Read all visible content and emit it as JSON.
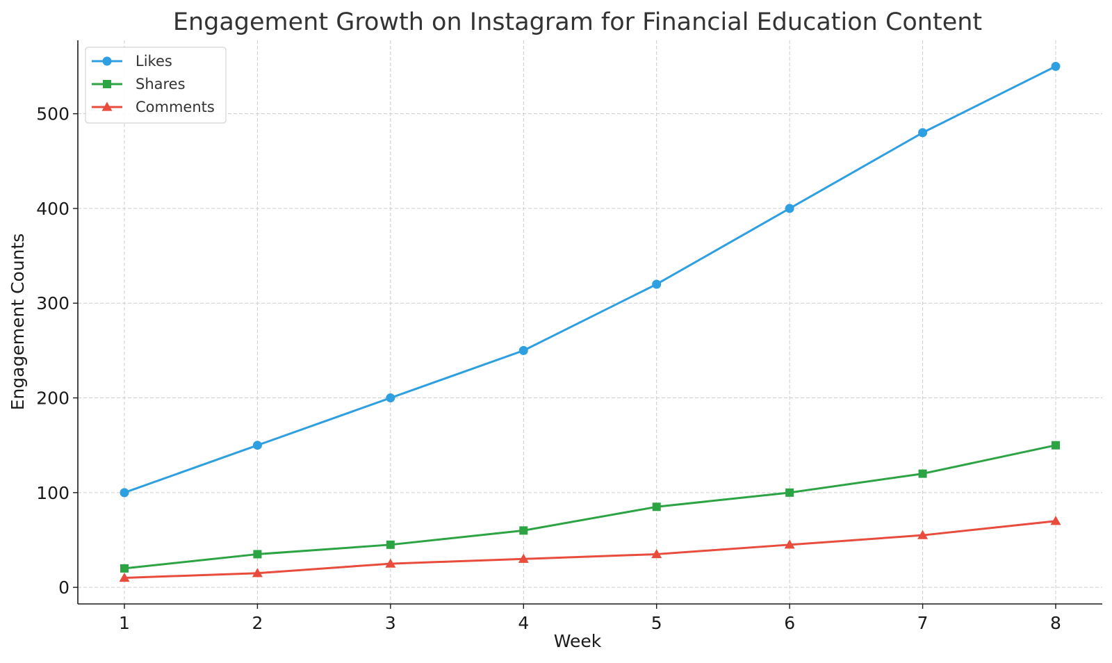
{
  "chart_data": {
    "type": "line",
    "title": "Engagement Growth on Instagram for Financial Education Content",
    "xlabel": "Week",
    "ylabel": "Engagement Counts",
    "x": [
      1,
      2,
      3,
      4,
      5,
      6,
      7,
      8
    ],
    "x_tick_labels": [
      "1",
      "2",
      "3",
      "4",
      "5",
      "6",
      "7",
      "8"
    ],
    "xlim": [
      0.65,
      8.35
    ],
    "ylim": [
      -17.5,
      577.5
    ],
    "y_ticks": [
      0,
      100,
      200,
      300,
      400,
      500
    ],
    "y_tick_labels": [
      "0",
      "100",
      "200",
      "300",
      "400",
      "500"
    ],
    "grid": true,
    "legend_position": "top-left",
    "series": [
      {
        "name": "Likes",
        "color": "#2e9fe0",
        "marker": "circle",
        "values": [
          100,
          150,
          200,
          250,
          320,
          400,
          480,
          550
        ]
      },
      {
        "name": "Shares",
        "color": "#2ca444",
        "marker": "square",
        "values": [
          20,
          35,
          45,
          60,
          85,
          100,
          120,
          150
        ]
      },
      {
        "name": "Comments",
        "color": "#e84c3d",
        "marker": "triangle",
        "values": [
          10,
          15,
          25,
          30,
          35,
          45,
          55,
          70
        ]
      }
    ]
  }
}
